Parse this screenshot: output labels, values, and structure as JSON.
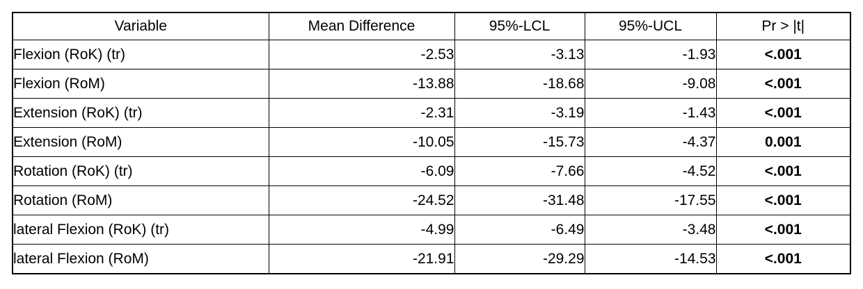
{
  "table": {
    "headers": [
      "Variable",
      "Mean Difference",
      "95%-LCL",
      "95%-UCL",
      "Pr > |t|"
    ],
    "rows": [
      {
        "variable": "Flexion (RoK) (tr)",
        "mean_difference": "-2.53",
        "lcl_95": "-3.13",
        "ucl_95": "-1.93",
        "p_value": "<.001"
      },
      {
        "variable": "Flexion (RoM)",
        "mean_difference": "-13.88",
        "lcl_95": "-18.68",
        "ucl_95": "-9.08",
        "p_value": "<.001"
      },
      {
        "variable": "Extension (RoK) (tr)",
        "mean_difference": "-2.31",
        "lcl_95": "-3.19",
        "ucl_95": "-1.43",
        "p_value": "<.001"
      },
      {
        "variable": "Extension (RoM)",
        "mean_difference": "-10.05",
        "lcl_95": "-15.73",
        "ucl_95": "-4.37",
        "p_value": "0.001"
      },
      {
        "variable": "Rotation (RoK) (tr)",
        "mean_difference": "-6.09",
        "lcl_95": "-7.66",
        "ucl_95": "-4.52",
        "p_value": "<.001"
      },
      {
        "variable": "Rotation (RoM)",
        "mean_difference": "-24.52",
        "lcl_95": "-31.48",
        "ucl_95": "-17.55",
        "p_value": "<.001"
      },
      {
        "variable": "lateral Flexion (RoK) (tr)",
        "mean_difference": "-4.99",
        "lcl_95": "-6.49",
        "ucl_95": "-3.48",
        "p_value": "<.001"
      },
      {
        "variable": "lateral Flexion (RoM)",
        "mean_difference": "-21.91",
        "lcl_95": "-29.29",
        "ucl_95": "-14.53",
        "p_value": "<.001"
      }
    ]
  },
  "chart_data": {
    "type": "table",
    "columns": [
      "Variable",
      "Mean Difference",
      "95%-LCL",
      "95%-UCL",
      "Pr > |t|"
    ],
    "rows": [
      [
        "Flexion (RoK) (tr)",
        -2.53,
        -3.13,
        -1.93,
        "<.001"
      ],
      [
        "Flexion (RoM)",
        -13.88,
        -18.68,
        -9.08,
        "<.001"
      ],
      [
        "Extension (RoK) (tr)",
        -2.31,
        -3.19,
        -1.43,
        "<.001"
      ],
      [
        "Extension (RoM)",
        -10.05,
        -15.73,
        -4.37,
        "0.001"
      ],
      [
        "Rotation (RoK) (tr)",
        -6.09,
        -7.66,
        -4.52,
        "<.001"
      ],
      [
        "Rotation (RoM)",
        -24.52,
        -31.48,
        -17.55,
        "<.001"
      ],
      [
        "lateral Flexion (RoK) (tr)",
        -4.99,
        -6.49,
        -3.48,
        "<.001"
      ],
      [
        "lateral Flexion (RoM)",
        -21.91,
        -29.29,
        -14.53,
        "<.001"
      ]
    ]
  },
  "colors": {
    "border": "#000000",
    "text": "#000000",
    "background": "#ffffff"
  }
}
